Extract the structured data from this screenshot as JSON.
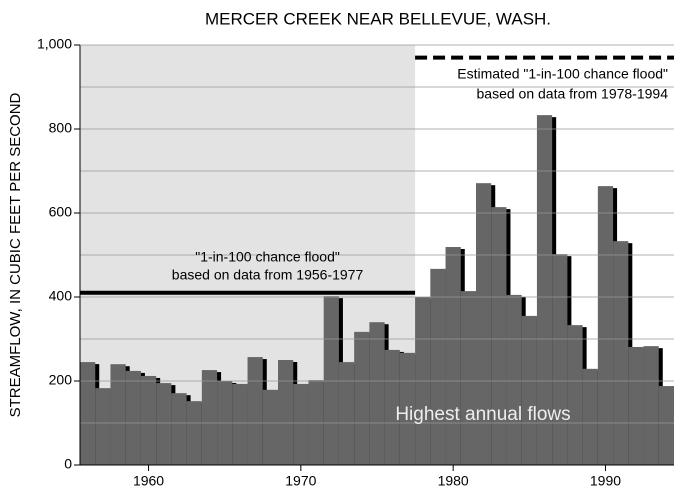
{
  "chart_data": {
    "type": "bar",
    "title": "MERCER CREEK NEAR BELLEVUE, WASH.",
    "y_label": "STREAMFLOW, IN CUBIC FEET PER SECOND",
    "x": [
      1956,
      1957,
      1958,
      1959,
      1960,
      1961,
      1962,
      1963,
      1964,
      1965,
      1966,
      1967,
      1968,
      1969,
      1970,
      1971,
      1972,
      1973,
      1974,
      1975,
      1976,
      1977,
      1978,
      1979,
      1980,
      1981,
      1982,
      1983,
      1984,
      1985,
      1986,
      1987,
      1988,
      1989,
      1990,
      1991,
      1992,
      1993,
      1994
    ],
    "values": [
      245,
      183,
      240,
      224,
      212,
      195,
      171,
      152,
      226,
      200,
      193,
      257,
      179,
      250,
      193,
      202,
      402,
      245,
      317,
      340,
      274,
      267,
      400,
      467,
      519,
      414,
      671,
      614,
      405,
      355,
      833,
      502,
      333,
      229,
      664,
      533,
      281,
      283,
      188
    ],
    "color": "#666666",
    "shadow_color": "#000000",
    "xlim": [
      1955.5,
      1994.5
    ],
    "xticks": [
      1960,
      1970,
      1980,
      1990
    ],
    "ylim": [
      0,
      1000
    ],
    "yticks": [
      0,
      200,
      400,
      600,
      800,
      {
        "value": 1000,
        "label": "1,000"
      }
    ],
    "grid_lines": [
      100,
      200,
      300,
      400,
      500,
      600,
      700,
      800,
      900
    ],
    "shaded_period": [
      1955.5,
      1977.5
    ],
    "annotations": [
      {
        "lines": [
          "\"1-in-100 chance flood\"",
          "based on data from 1956-1977"
        ],
        "value": 410,
        "x_range": [
          1955.5,
          1977.5
        ],
        "style": "solid"
      },
      {
        "lines": [
          "Estimated \"1-in-100 chance flood\"",
          "based on data from 1978-1994"
        ],
        "value": 970,
        "x_range": [
          1977.5,
          1994.5
        ],
        "style": "dashed"
      }
    ],
    "label": "Highest annual flows"
  }
}
